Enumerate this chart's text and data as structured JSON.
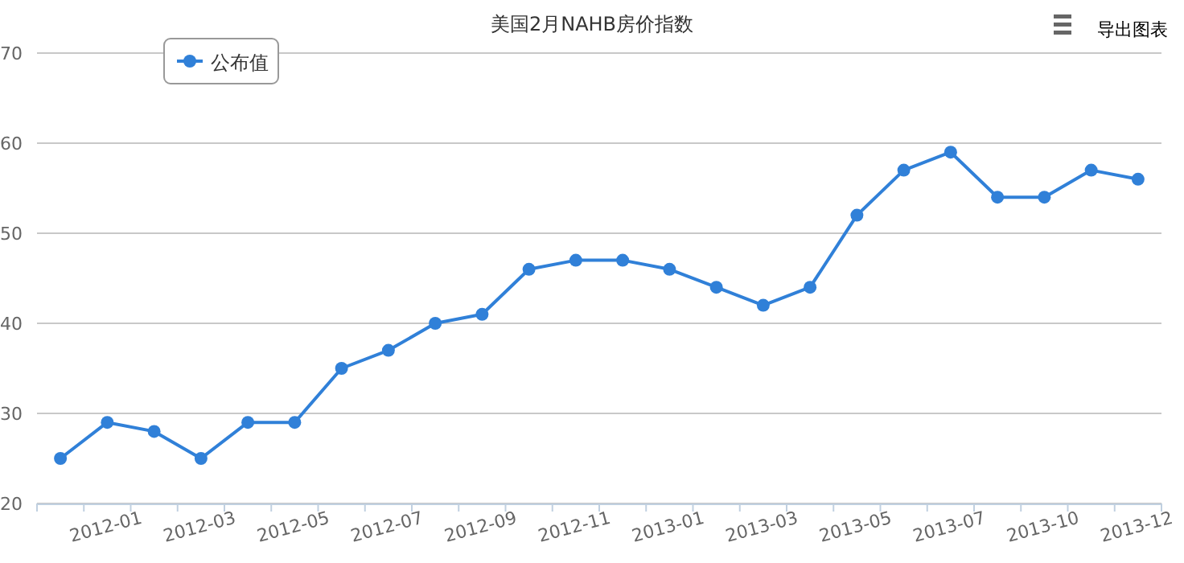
{
  "chart_data": {
    "type": "line",
    "title": "美国2月NAHB房价指数",
    "categories": [
      null,
      "2012-01",
      null,
      "2012-03",
      null,
      "2012-05",
      null,
      "2012-07",
      null,
      "2012-09",
      null,
      "2012-11",
      null,
      "2013-01",
      null,
      "2013-03",
      null,
      "2013-05",
      null,
      "2013-07",
      null,
      "2013-10",
      null,
      "2013-12"
    ],
    "series": [
      {
        "name": "公布值",
        "color": "#3080d8",
        "values": [
          25,
          29,
          28,
          25,
          29,
          29,
          35,
          37,
          40,
          41,
          46,
          47,
          47,
          46,
          44,
          42,
          44,
          52,
          57,
          59,
          54,
          54,
          57,
          56
        ]
      }
    ],
    "ylim": [
      20,
      70
    ],
    "yticks": [
      20,
      30,
      40,
      50,
      60,
      70
    ],
    "grid": "y",
    "legend": "top left",
    "marker": "circle",
    "line_style": "solid",
    "annotations": [
      "导出图表"
    ]
  }
}
